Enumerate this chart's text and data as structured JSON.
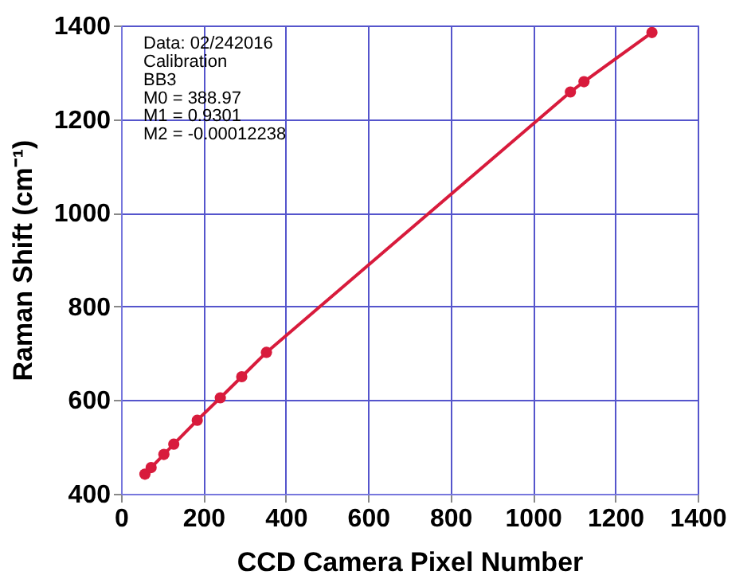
{
  "chart_data": {
    "type": "line",
    "xlabel": "CCD Camera Pixel Number",
    "ylabel": "Raman Shift (cm⁻¹)",
    "x": [
      58,
      73,
      104,
      128,
      185,
      241,
      293,
      353,
      1091,
      1124,
      1289
    ],
    "series": [
      {
        "color": "#d81b3c",
        "values": [
          442,
          456,
          484,
          506,
          557,
          605,
          650,
          702,
          1258,
          1280,
          1385
        ]
      }
    ],
    "marker": "circle",
    "line_style": "solid",
    "xlim": [
      0,
      1400
    ],
    "xticks": [
      0,
      200,
      400,
      600,
      800,
      1000,
      1200,
      1400
    ],
    "ylim": [
      400,
      1400
    ],
    "yticks": [
      400,
      600,
      800,
      1000,
      1200,
      1400
    ],
    "grid": true,
    "annotations": [
      "Data: 02/242016",
      "Calibration",
      "BB3",
      "M0 = 388.97",
      "M1 = 0.9301",
      "M2 = -0.00012238"
    ]
  }
}
